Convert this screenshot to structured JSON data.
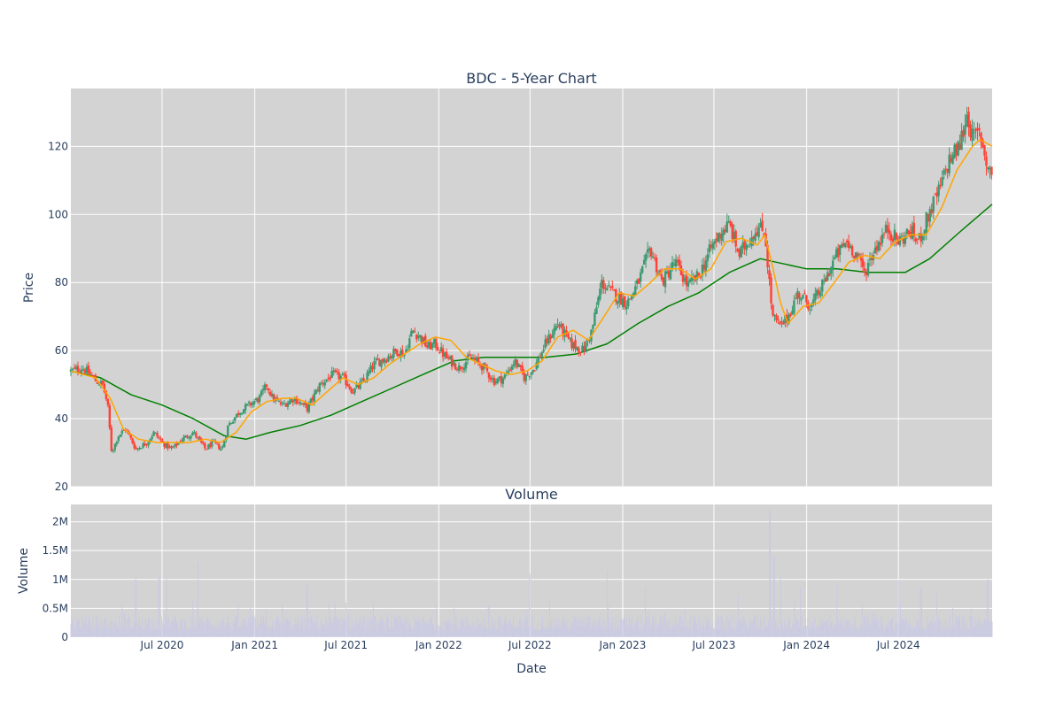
{
  "colors": {
    "plot_bg": "#d3d3d3",
    "grid": "#ffffff",
    "up": "#3d9970",
    "down": "#ff4136",
    "ma_short": "#ffa500",
    "ma_long": "#008000",
    "volume": "#c8c8e6",
    "text": "#2a3f5f"
  },
  "chart_data": [
    {
      "type": "candlestick",
      "title": "BDC - 5-Year Chart",
      "ylabel": "Price",
      "ylim": [
        20,
        137
      ],
      "yticks": [
        20,
        40,
        60,
        80,
        100,
        120
      ],
      "x_range": [
        "2020-01-02",
        "2025-01-03"
      ],
      "xticks": [
        {
          "date": "2020-07-01",
          "label": "Jul 2020"
        },
        {
          "date": "2021-01-01",
          "label": "Jan 2021"
        },
        {
          "date": "2021-07-01",
          "label": "Jul 2021"
        },
        {
          "date": "2022-01-01",
          "label": "Jan 2022"
        },
        {
          "date": "2022-07-01",
          "label": "Jul 2022"
        },
        {
          "date": "2023-01-01",
          "label": "Jan 2023"
        },
        {
          "date": "2023-07-01",
          "label": "Jul 2023"
        },
        {
          "date": "2024-01-01",
          "label": "Jan 2024"
        },
        {
          "date": "2024-07-01",
          "label": "Jul 2024"
        }
      ],
      "grid": true,
      "close_path": [
        [
          "2020-01-02",
          54
        ],
        [
          "2020-01-25",
          55
        ],
        [
          "2020-02-10",
          53
        ],
        [
          "2020-02-21",
          51
        ],
        [
          "2020-03-05",
          50
        ],
        [
          "2020-03-15",
          44
        ],
        [
          "2020-03-23",
          30
        ],
        [
          "2020-04-05",
          35
        ],
        [
          "2020-04-20",
          37
        ],
        [
          "2020-05-10",
          31
        ],
        [
          "2020-06-01",
          33
        ],
        [
          "2020-06-15",
          36
        ],
        [
          "2020-07-01",
          33
        ],
        [
          "2020-07-20",
          31
        ],
        [
          "2020-08-10",
          34
        ],
        [
          "2020-09-01",
          36
        ],
        [
          "2020-09-25",
          31
        ],
        [
          "2020-10-10",
          33
        ],
        [
          "2020-10-28",
          31
        ],
        [
          "2020-11-09",
          38
        ],
        [
          "2020-12-01",
          42
        ],
        [
          "2020-12-20",
          44
        ],
        [
          "2021-01-10",
          46
        ],
        [
          "2021-01-25",
          50
        ],
        [
          "2021-02-05",
          46
        ],
        [
          "2021-02-25",
          44
        ],
        [
          "2021-03-20",
          46
        ],
        [
          "2021-04-15",
          43
        ],
        [
          "2021-05-10",
          50
        ],
        [
          "2021-06-05",
          53
        ],
        [
          "2021-06-25",
          52
        ],
        [
          "2021-07-15",
          48
        ],
        [
          "2021-08-05",
          51
        ],
        [
          "2021-08-25",
          56
        ],
        [
          "2021-09-20",
          58
        ],
        [
          "2021-10-10",
          60
        ],
        [
          "2021-10-25",
          59
        ],
        [
          "2021-11-10",
          66
        ],
        [
          "2021-11-25",
          64
        ],
        [
          "2021-12-10",
          61
        ],
        [
          "2021-12-25",
          62
        ],
        [
          "2022-01-15",
          58
        ],
        [
          "2022-02-10",
          55
        ],
        [
          "2022-03-05",
          58
        ],
        [
          "2022-04-01",
          55
        ],
        [
          "2022-04-20",
          51
        ],
        [
          "2022-05-10",
          52
        ],
        [
          "2022-06-01",
          57
        ],
        [
          "2022-06-20",
          52
        ],
        [
          "2022-07-10",
          55
        ],
        [
          "2022-08-01",
          62
        ],
        [
          "2022-08-25",
          68
        ],
        [
          "2022-09-20",
          62
        ],
        [
          "2022-10-15",
          60
        ],
        [
          "2022-11-01",
          66
        ],
        [
          "2022-11-20",
          80
        ],
        [
          "2022-12-10",
          77
        ],
        [
          "2023-01-10",
          74
        ],
        [
          "2023-02-01",
          80
        ],
        [
          "2023-02-25",
          90
        ],
        [
          "2023-03-20",
          80
        ],
        [
          "2023-04-15",
          86
        ],
        [
          "2023-05-10",
          79
        ],
        [
          "2023-06-01",
          82
        ],
        [
          "2023-06-25",
          90
        ],
        [
          "2023-07-15",
          95
        ],
        [
          "2023-08-01",
          97
        ],
        [
          "2023-08-20",
          88
        ],
        [
          "2023-09-10",
          93
        ],
        [
          "2023-09-25",
          96
        ],
        [
          "2023-10-10",
          95
        ],
        [
          "2023-10-25",
          70
        ],
        [
          "2023-11-10",
          67
        ],
        [
          "2023-11-25",
          70
        ],
        [
          "2023-12-15",
          77
        ],
        [
          "2024-01-10",
          73
        ],
        [
          "2024-02-05",
          80
        ],
        [
          "2024-02-25",
          87
        ],
        [
          "2024-03-20",
          92
        ],
        [
          "2024-04-10",
          88
        ],
        [
          "2024-04-25",
          83
        ],
        [
          "2024-05-15",
          90
        ],
        [
          "2024-06-10",
          96
        ],
        [
          "2024-06-30",
          92
        ],
        [
          "2024-07-25",
          95
        ],
        [
          "2024-08-10",
          92
        ],
        [
          "2024-08-30",
          100
        ],
        [
          "2024-09-20",
          107
        ],
        [
          "2024-10-10",
          116
        ],
        [
          "2024-10-30",
          120
        ],
        [
          "2024-11-15",
          130
        ],
        [
          "2024-11-25",
          122
        ],
        [
          "2024-12-10",
          124
        ],
        [
          "2024-12-25",
          114
        ],
        [
          "2025-01-03",
          112
        ]
      ],
      "ma_short": [
        [
          "2020-01-02",
          54
        ],
        [
          "2020-02-20",
          52
        ],
        [
          "2020-03-20",
          46
        ],
        [
          "2020-04-15",
          37
        ],
        [
          "2020-05-15",
          34
        ],
        [
          "2020-06-20",
          33
        ],
        [
          "2020-07-25",
          33
        ],
        [
          "2020-08-25",
          33
        ],
        [
          "2020-09-25",
          34
        ],
        [
          "2020-10-25",
          33
        ],
        [
          "2020-11-25",
          36
        ],
        [
          "2020-12-25",
          42
        ],
        [
          "2021-01-25",
          45
        ],
        [
          "2021-02-25",
          46
        ],
        [
          "2021-03-25",
          46
        ],
        [
          "2021-04-25",
          44
        ],
        [
          "2021-05-25",
          48
        ],
        [
          "2021-06-25",
          52
        ],
        [
          "2021-07-25",
          50
        ],
        [
          "2021-08-25",
          52
        ],
        [
          "2021-09-25",
          56
        ],
        [
          "2021-10-25",
          59
        ],
        [
          "2021-11-25",
          62
        ],
        [
          "2021-12-25",
          64
        ],
        [
          "2022-01-25",
          63
        ],
        [
          "2022-02-25",
          58
        ],
        [
          "2022-03-25",
          56
        ],
        [
          "2022-04-25",
          54
        ],
        [
          "2022-05-25",
          53
        ],
        [
          "2022-06-25",
          54
        ],
        [
          "2022-07-25",
          57
        ],
        [
          "2022-08-25",
          64
        ],
        [
          "2022-09-25",
          66
        ],
        [
          "2022-10-25",
          63
        ],
        [
          "2022-11-25",
          70
        ],
        [
          "2022-12-25",
          77
        ],
        [
          "2023-01-25",
          76
        ],
        [
          "2023-02-25",
          80
        ],
        [
          "2023-03-25",
          84
        ],
        [
          "2023-04-25",
          84
        ],
        [
          "2023-05-25",
          81
        ],
        [
          "2023-06-25",
          84
        ],
        [
          "2023-07-25",
          92
        ],
        [
          "2023-08-25",
          93
        ],
        [
          "2023-09-25",
          91
        ],
        [
          "2023-10-10",
          94
        ],
        [
          "2023-10-25",
          85
        ],
        [
          "2023-11-10",
          74
        ],
        [
          "2023-11-25",
          68
        ],
        [
          "2023-12-25",
          73
        ],
        [
          "2024-01-25",
          74
        ],
        [
          "2024-02-25",
          80
        ],
        [
          "2024-03-25",
          86
        ],
        [
          "2024-04-25",
          88
        ],
        [
          "2024-05-25",
          87
        ],
        [
          "2024-06-25",
          92
        ],
        [
          "2024-07-25",
          94
        ],
        [
          "2024-08-25",
          94
        ],
        [
          "2024-09-25",
          102
        ],
        [
          "2024-10-25",
          113
        ],
        [
          "2024-11-25",
          120
        ],
        [
          "2024-12-10",
          122
        ],
        [
          "2025-01-03",
          120
        ]
      ],
      "ma_long": [
        [
          "2020-01-02",
          54
        ],
        [
          "2020-03-01",
          52
        ],
        [
          "2020-05-01",
          47
        ],
        [
          "2020-07-01",
          44
        ],
        [
          "2020-09-01",
          40
        ],
        [
          "2020-11-01",
          35
        ],
        [
          "2020-12-15",
          34
        ],
        [
          "2021-02-01",
          36
        ],
        [
          "2021-04-01",
          38
        ],
        [
          "2021-06-01",
          41
        ],
        [
          "2021-08-01",
          45
        ],
        [
          "2021-10-01",
          49
        ],
        [
          "2021-12-01",
          53
        ],
        [
          "2022-02-01",
          57
        ],
        [
          "2022-04-01",
          58
        ],
        [
          "2022-06-01",
          58
        ],
        [
          "2022-08-01",
          58
        ],
        [
          "2022-10-01",
          59
        ],
        [
          "2022-12-01",
          62
        ],
        [
          "2023-02-01",
          68
        ],
        [
          "2023-04-01",
          73
        ],
        [
          "2023-06-01",
          77
        ],
        [
          "2023-08-01",
          83
        ],
        [
          "2023-10-01",
          87
        ],
        [
          "2023-11-01",
          86
        ],
        [
          "2024-01-01",
          84
        ],
        [
          "2024-03-01",
          84
        ],
        [
          "2024-05-01",
          83
        ],
        [
          "2024-06-01",
          83
        ],
        [
          "2024-07-15",
          83
        ],
        [
          "2024-09-01",
          87
        ],
        [
          "2024-11-01",
          95
        ],
        [
          "2025-01-03",
          103
        ]
      ]
    },
    {
      "type": "bar",
      "title": "Volume",
      "xlabel": "Date",
      "ylabel": "Volume",
      "ylim": [
        0,
        2300000
      ],
      "yticks": [
        {
          "value": 0,
          "label": "0"
        },
        {
          "value": 500000,
          "label": "0.5M"
        },
        {
          "value": 1000000,
          "label": "1M"
        },
        {
          "value": 1500000,
          "label": "1.5M"
        },
        {
          "value": 2000000,
          "label": "2M"
        }
      ],
      "spikes": [
        [
          "2020-05-10",
          1000000
        ],
        [
          "2020-06-25",
          1050000
        ],
        [
          "2020-07-10",
          1050000
        ],
        [
          "2020-09-10",
          1300000
        ],
        [
          "2021-04-15",
          900000
        ],
        [
          "2021-07-01",
          600000
        ],
        [
          "2022-04-10",
          550000
        ],
        [
          "2022-07-01",
          1100000
        ],
        [
          "2022-12-01",
          1150000
        ],
        [
          "2023-02-15",
          850000
        ],
        [
          "2023-10-20",
          2200000
        ],
        [
          "2023-10-28",
          1400000
        ],
        [
          "2023-11-10",
          1050000
        ],
        [
          "2023-12-20",
          850000
        ],
        [
          "2024-03-01",
          950000
        ],
        [
          "2024-07-01",
          1000000
        ],
        [
          "2024-08-15",
          850000
        ],
        [
          "2024-09-15",
          750000
        ],
        [
          "2024-12-25",
          1000000
        ]
      ]
    }
  ]
}
